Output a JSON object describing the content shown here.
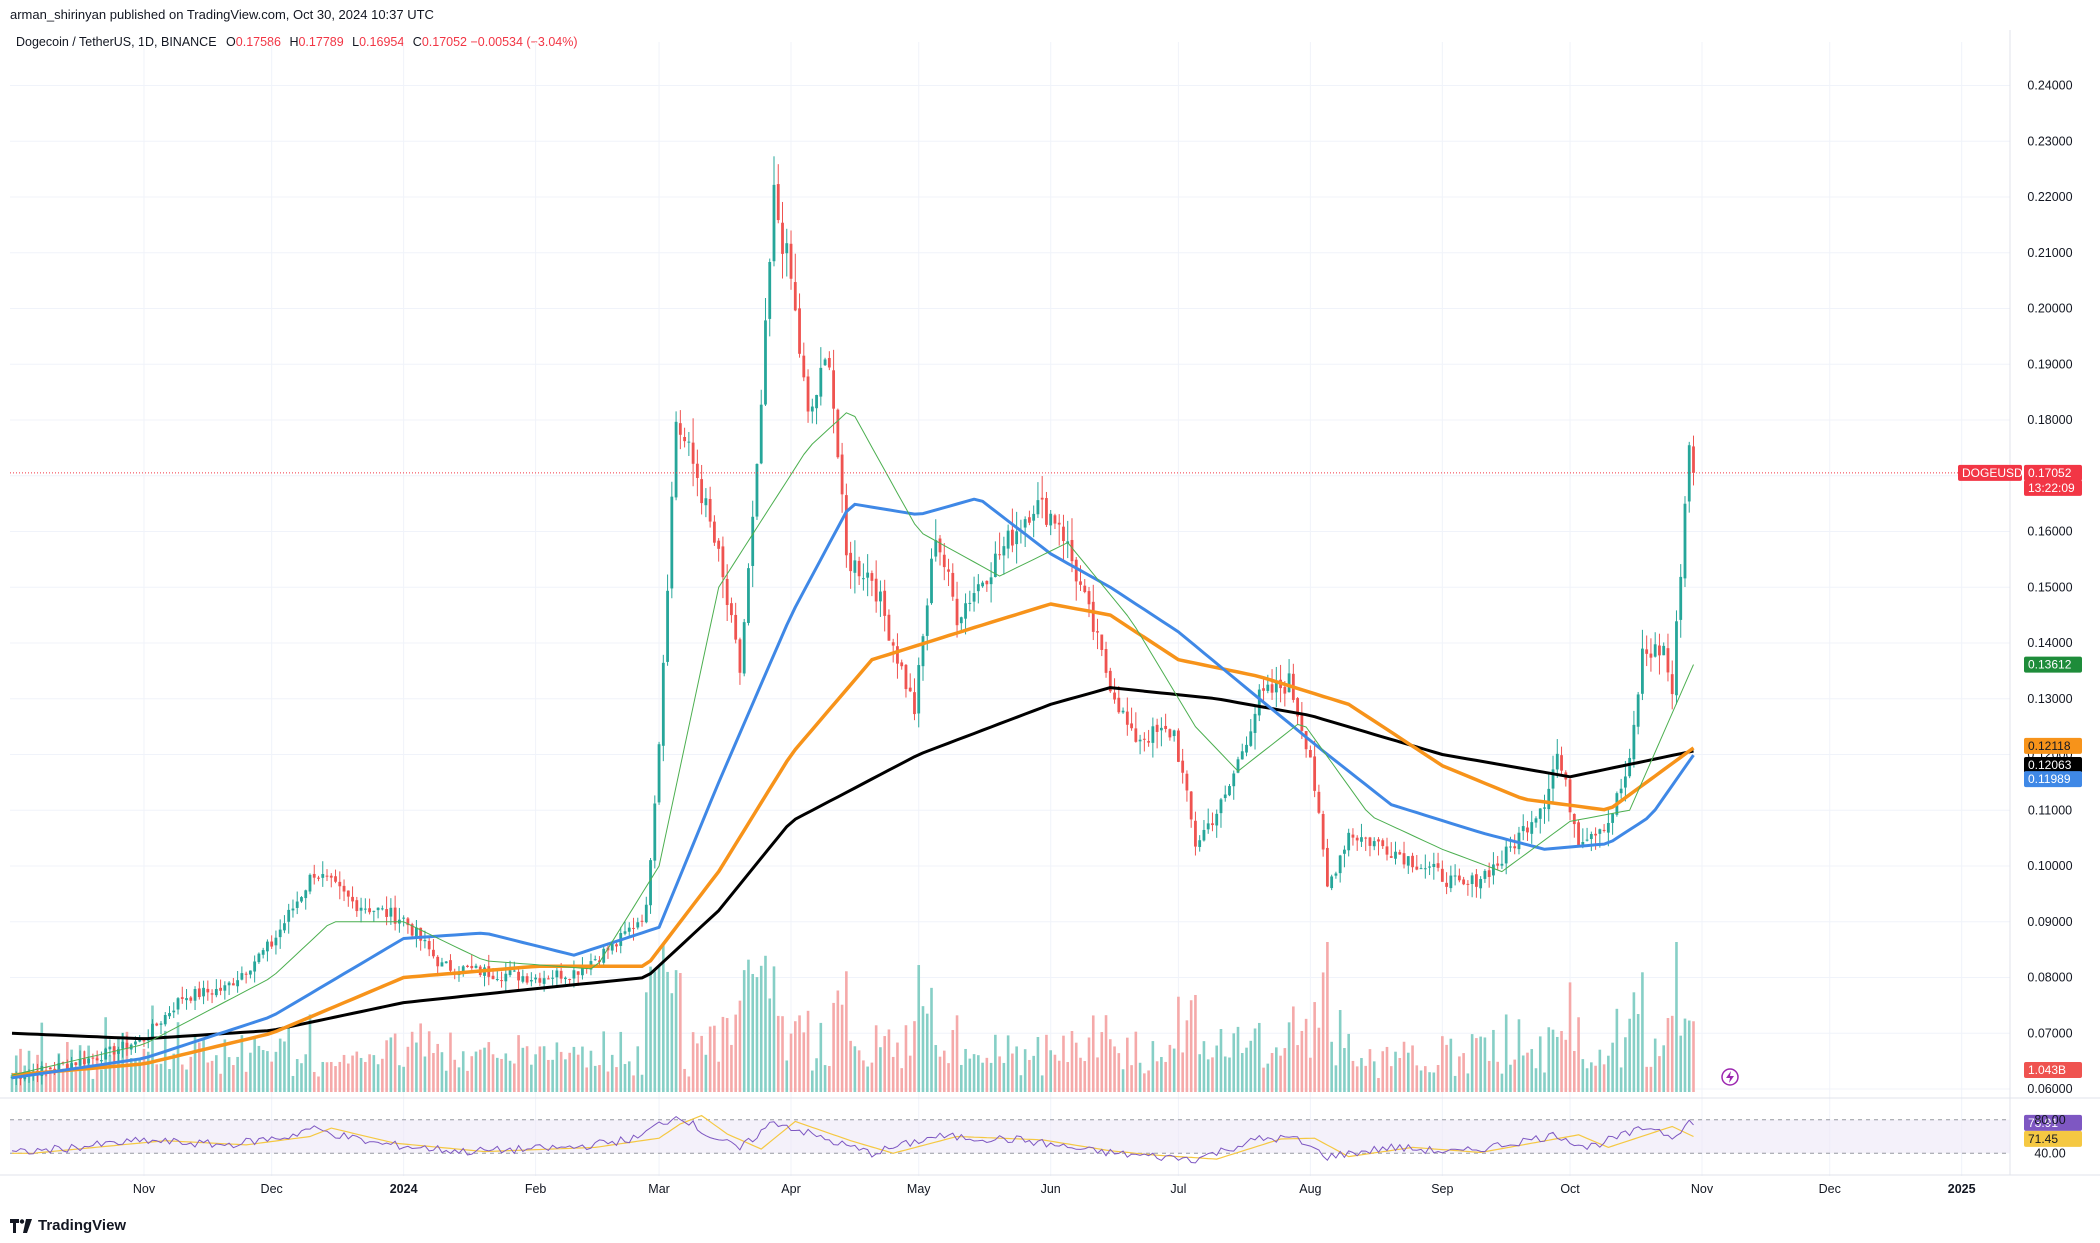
{
  "header": {
    "publisher": "arman_shirinyan published on TradingView.com, Oct 30, 2024 10:37 UTC",
    "symbol": "Dogecoin / TetherUS, 1D, BINANCE",
    "o_key": "O",
    "o_val": "0.17586",
    "h_key": "H",
    "h_val": "0.17789",
    "l_key": "L",
    "l_val": "0.16954",
    "c_key": "C",
    "c_val": "0.17052 −0.00534 (−3.04%)"
  },
  "footer": {
    "brand": "TradingView",
    "logo": "tradingview-logo"
  },
  "colors": {
    "up": "#26a69a",
    "down": "#ef5350",
    "ma20": "#4caf50",
    "ma50": "#3f88e6",
    "ma100": "#f7931a",
    "ma200": "#000000",
    "rsi": "#7e57c2",
    "rsi_ma": "#f5c842",
    "rsi_band": "#ede7f6",
    "price_line": "#f23645"
  },
  "chart_data": {
    "type": "candlestick",
    "symbol": "DOGEUSDT",
    "timeframe": "1D",
    "exchange": "BINANCE",
    "ylim": [
      0.06,
      0.245
    ],
    "x_ticks": [
      "Nov",
      "Dec",
      "2024",
      "Feb",
      "Mar",
      "Apr",
      "May",
      "Jun",
      "Jul",
      "Aug",
      "Sep",
      "Oct",
      "Nov",
      "Dec",
      "2025"
    ],
    "y_ticks": [
      "0.24000",
      "0.23000",
      "0.22000",
      "0.21000",
      "0.20000",
      "0.19000",
      "0.18000",
      "0.17000",
      "0.16000",
      "0.15000",
      "0.14000",
      "0.13000",
      "0.12000",
      "0.11000",
      "0.10000",
      "0.09000",
      "0.08000",
      "0.07000",
      "0.06000"
    ],
    "close_anchors": [
      [
        "2023-10-01",
        0.0622
      ],
      [
        "2023-10-20",
        0.0655
      ],
      [
        "2023-11-01",
        0.069
      ],
      [
        "2023-11-10",
        0.0765
      ],
      [
        "2023-11-20",
        0.078
      ],
      [
        "2023-12-01",
        0.086
      ],
      [
        "2023-12-11",
        0.099
      ],
      [
        "2023-12-20",
        0.0935
      ],
      [
        "2024-01-01",
        0.0905
      ],
      [
        "2024-01-10",
        0.082
      ],
      [
        "2024-01-20",
        0.081
      ],
      [
        "2024-02-01",
        0.08
      ],
      [
        "2024-02-10",
        0.081
      ],
      [
        "2024-02-20",
        0.086
      ],
      [
        "2024-02-27",
        0.092
      ],
      [
        "2024-03-01",
        0.123
      ],
      [
        "2024-03-05",
        0.18
      ],
      [
        "2024-03-10",
        0.17
      ],
      [
        "2024-03-15",
        0.155
      ],
      [
        "2024-03-20",
        0.135
      ],
      [
        "2024-03-24",
        0.17
      ],
      [
        "2024-03-28",
        0.22
      ],
      [
        "2024-04-01",
        0.205
      ],
      [
        "2024-04-05",
        0.18
      ],
      [
        "2024-04-10",
        0.192
      ],
      [
        "2024-04-14",
        0.155
      ],
      [
        "2024-04-20",
        0.152
      ],
      [
        "2024-04-30",
        0.128
      ],
      [
        "2024-05-05",
        0.16
      ],
      [
        "2024-05-10",
        0.145
      ],
      [
        "2024-05-20",
        0.156
      ],
      [
        "2024-05-28",
        0.165
      ],
      [
        "2024-06-03",
        0.162
      ],
      [
        "2024-06-10",
        0.145
      ],
      [
        "2024-06-14",
        0.135
      ],
      [
        "2024-06-20",
        0.123
      ],
      [
        "2024-06-30",
        0.124
      ],
      [
        "2024-07-05",
        0.104
      ],
      [
        "2024-07-12",
        0.112
      ],
      [
        "2024-07-20",
        0.13
      ],
      [
        "2024-07-27",
        0.133
      ],
      [
        "2024-08-01",
        0.12
      ],
      [
        "2024-08-05",
        0.096
      ],
      [
        "2024-08-10",
        0.106
      ],
      [
        "2024-08-20",
        0.103
      ],
      [
        "2024-08-30",
        0.099
      ],
      [
        "2024-09-06",
        0.096
      ],
      [
        "2024-09-15",
        0.101
      ],
      [
        "2024-09-25",
        0.112
      ],
      [
        "2024-09-28",
        0.12
      ],
      [
        "2024-10-03",
        0.105
      ],
      [
        "2024-10-10",
        0.108
      ],
      [
        "2024-10-15",
        0.118
      ],
      [
        "2024-10-18",
        0.138
      ],
      [
        "2024-10-23",
        0.139
      ],
      [
        "2024-10-25",
        0.131
      ],
      [
        "2024-10-28",
        0.165
      ],
      [
        "2024-10-29",
        0.1759
      ],
      [
        "2024-10-30",
        0.17052
      ]
    ],
    "ma20_anchors": [
      [
        "2023-10-01",
        0.0625
      ],
      [
        "2023-11-01",
        0.068
      ],
      [
        "2023-12-01",
        0.08
      ],
      [
        "2023-12-15",
        0.09
      ],
      [
        "2024-01-01",
        0.09
      ],
      [
        "2024-01-20",
        0.083
      ],
      [
        "2024-02-15",
        0.0815
      ],
      [
        "2024-03-01",
        0.1
      ],
      [
        "2024-03-15",
        0.15
      ],
      [
        "2024-04-05",
        0.175
      ],
      [
        "2024-04-15",
        0.182
      ],
      [
        "2024-05-01",
        0.16
      ],
      [
        "2024-05-20",
        0.152
      ],
      [
        "2024-06-05",
        0.158
      ],
      [
        "2024-06-20",
        0.144
      ],
      [
        "2024-07-05",
        0.125
      ],
      [
        "2024-07-15",
        0.117
      ],
      [
        "2024-07-30",
        0.126
      ],
      [
        "2024-08-15",
        0.109
      ],
      [
        "2024-09-01",
        0.103
      ],
      [
        "2024-09-15",
        0.099
      ],
      [
        "2024-10-01",
        0.108
      ],
      [
        "2024-10-15",
        0.11
      ],
      [
        "2024-10-30",
        0.13612
      ]
    ],
    "ma50_anchors": [
      [
        "2023-10-01",
        0.062
      ],
      [
        "2023-11-01",
        0.0655
      ],
      [
        "2023-12-01",
        0.073
      ],
      [
        "2024-01-01",
        0.087
      ],
      [
        "2024-01-20",
        0.088
      ],
      [
        "2024-02-10",
        0.084
      ],
      [
        "2024-03-01",
        0.089
      ],
      [
        "2024-03-15",
        0.115
      ],
      [
        "2024-04-01",
        0.145
      ],
      [
        "2024-04-15",
        0.165
      ],
      [
        "2024-05-01",
        0.163
      ],
      [
        "2024-05-15",
        0.166
      ],
      [
        "2024-06-01",
        0.156
      ],
      [
        "2024-06-15",
        0.15
      ],
      [
        "2024-07-01",
        0.142
      ],
      [
        "2024-07-20",
        0.13
      ],
      [
        "2024-08-05",
        0.12
      ],
      [
        "2024-08-20",
        0.111
      ],
      [
        "2024-09-10",
        0.106
      ],
      [
        "2024-09-25",
        0.103
      ],
      [
        "2024-10-10",
        0.104
      ],
      [
        "2024-10-20",
        0.109
      ],
      [
        "2024-10-30",
        0.11989
      ]
    ],
    "ma100_anchors": [
      [
        "2023-10-01",
        0.0625
      ],
      [
        "2023-11-01",
        0.0645
      ],
      [
        "2023-12-01",
        0.07
      ],
      [
        "2024-01-01",
        0.08
      ],
      [
        "2024-02-01",
        0.082
      ],
      [
        "2024-02-27",
        0.082
      ],
      [
        "2024-03-15",
        0.099
      ],
      [
        "2024-04-01",
        0.12
      ],
      [
        "2024-04-20",
        0.137
      ],
      [
        "2024-05-15",
        0.143
      ],
      [
        "2024-06-01",
        0.147
      ],
      [
        "2024-06-15",
        0.145
      ],
      [
        "2024-07-01",
        0.137
      ],
      [
        "2024-07-20",
        0.134
      ],
      [
        "2024-08-10",
        0.129
      ],
      [
        "2024-09-01",
        0.118
      ],
      [
        "2024-09-20",
        0.112
      ],
      [
        "2024-10-10",
        0.11
      ],
      [
        "2024-10-30",
        0.12118
      ]
    ],
    "ma200_anchors": [
      [
        "2023-10-01",
        0.07
      ],
      [
        "2023-11-01",
        0.069
      ],
      [
        "2023-12-01",
        0.0705
      ],
      [
        "2024-01-01",
        0.0755
      ],
      [
        "2024-02-01",
        0.078
      ],
      [
        "2024-02-27",
        0.08
      ],
      [
        "2024-03-15",
        0.092
      ],
      [
        "2024-04-01",
        0.108
      ],
      [
        "2024-05-01",
        0.12
      ],
      [
        "2024-06-01",
        0.129
      ],
      [
        "2024-06-15",
        0.132
      ],
      [
        "2024-07-10",
        0.13
      ],
      [
        "2024-08-01",
        0.127
      ],
      [
        "2024-09-01",
        0.12
      ],
      [
        "2024-10-01",
        0.116
      ],
      [
        "2024-10-30",
        0.12063
      ]
    ],
    "rsi_anchors": [
      [
        "2023-10-01",
        40
      ],
      [
        "2023-11-01",
        55
      ],
      [
        "2023-11-20",
        50
      ],
      [
        "2023-12-05",
        60
      ],
      [
        "2023-12-10",
        70
      ],
      [
        "2023-12-25",
        52
      ],
      [
        "2024-01-15",
        42
      ],
      [
        "2024-02-10",
        47
      ],
      [
        "2024-02-25",
        58
      ],
      [
        "2024-03-01",
        75
      ],
      [
        "2024-03-06",
        85
      ],
      [
        "2024-03-12",
        63
      ],
      [
        "2024-03-20",
        45
      ],
      [
        "2024-03-28",
        78
      ],
      [
        "2024-04-10",
        55
      ],
      [
        "2024-04-20",
        40
      ],
      [
        "2024-05-05",
        60
      ],
      [
        "2024-05-25",
        56
      ],
      [
        "2024-06-10",
        43
      ],
      [
        "2024-06-20",
        38
      ],
      [
        "2024-07-05",
        33
      ],
      [
        "2024-07-20",
        57
      ],
      [
        "2024-07-28",
        58
      ],
      [
        "2024-08-05",
        36
      ],
      [
        "2024-08-20",
        47
      ],
      [
        "2024-09-05",
        41
      ],
      [
        "2024-09-28",
        62
      ],
      [
        "2024-10-05",
        47
      ],
      [
        "2024-10-20",
        72
      ],
      [
        "2024-10-25",
        60
      ],
      [
        "2024-10-29",
        78
      ],
      [
        "2024-10-30",
        73.91
      ]
    ],
    "current_price": "0.17052",
    "symbol_label": "DOGEUSDT",
    "countdown": "13:22:09",
    "ma_labels": {
      "ma20": "0.13612",
      "ma100": "0.12118",
      "ma200": "0.12063",
      "ma50": "0.11989"
    },
    "volume_label": "1.043B",
    "rsi_labels": {
      "rsi": "73.91",
      "rsi_ma": "71.45",
      "level_80": "80.00",
      "level_40": "40.00"
    }
  }
}
